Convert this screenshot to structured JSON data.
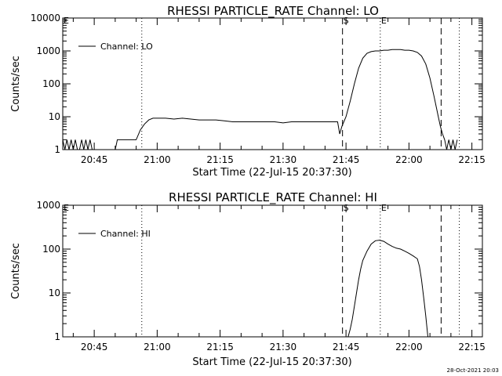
{
  "footer": {
    "timestamp": "28-Oct-2021 20:03"
  },
  "chart_data": [
    {
      "type": "line",
      "title": "RHESSI PARTICLE_RATE Channel: LO",
      "xlabel": "Start Time (22-Jul-15 20:37:30)",
      "ylabel": "Counts/sec",
      "yscale": "log",
      "xlim": [
        "20:37:30",
        "22:17:30"
      ],
      "ylim": [
        1,
        10000
      ],
      "xticks": [
        "20:45",
        "21:00",
        "21:15",
        "21:30",
        "21:45",
        "22:00",
        "22:15"
      ],
      "yticks": [
        "1",
        "10",
        "100",
        "1000",
        "10000"
      ],
      "legend": "top-left",
      "markers": [
        {
          "label": "E",
          "time": "20:37:30",
          "style": "dotted"
        },
        {
          "label": "",
          "time": "20:56:20",
          "style": "dotted"
        },
        {
          "label": "S",
          "time": "21:44:10",
          "style": "dashed"
        },
        {
          "label": "E",
          "time": "21:53:10",
          "style": "dotted"
        },
        {
          "label": "",
          "time": "22:07:40",
          "style": "dashed"
        },
        {
          "label": "",
          "time": "22:12:00",
          "style": "dotted"
        }
      ],
      "series": [
        {
          "name": "Channel: LO",
          "x": [
            "20:37:30",
            "20:38:00",
            "20:38:30",
            "20:39:00",
            "20:39:30",
            "20:40:00",
            "20:40:30",
            "20:41:00",
            "20:41:30",
            "20:42:00",
            "20:42:30",
            "20:43:00",
            "20:43:30",
            "20:44:00",
            "20:44:30",
            "20:50:00",
            "20:50:30",
            "20:51:00",
            "20:51:30",
            "20:52:00",
            "20:52:30",
            "20:53:00",
            "20:54:00",
            "20:55:00",
            "20:56:00",
            "20:57:00",
            "20:58:00",
            "20:59:00",
            "21:00:00",
            "21:02:00",
            "21:04:00",
            "21:06:00",
            "21:08:00",
            "21:10:00",
            "21:12:00",
            "21:14:00",
            "21:16:00",
            "21:18:00",
            "21:20:00",
            "21:22:00",
            "21:24:00",
            "21:26:00",
            "21:28:00",
            "21:30:00",
            "21:32:00",
            "21:34:00",
            "21:36:00",
            "21:38:00",
            "21:40:00",
            "21:42:00",
            "21:43:00",
            "21:43:30",
            "21:44:00",
            "21:45:00",
            "21:46:00",
            "21:47:00",
            "21:48:00",
            "21:49:00",
            "21:50:00",
            "21:51:00",
            "21:52:00",
            "21:53:00",
            "21:54:00",
            "21:55:00",
            "21:56:00",
            "21:57:00",
            "21:58:00",
            "21:59:00",
            "22:00:00",
            "22:01:00",
            "22:02:00",
            "22:03:00",
            "22:04:00",
            "22:05:00",
            "22:06:00",
            "22:07:00",
            "22:07:30",
            "22:08:00",
            "22:08:30",
            "22:09:00",
            "22:09:30",
            "22:10:00",
            "22:10:30",
            "22:11:00",
            "22:11:30"
          ],
          "y": [
            2,
            1,
            2,
            1,
            2,
            1,
            2,
            1,
            1,
            2,
            1,
            2,
            1,
            2,
            1,
            1,
            2,
            2,
            2,
            2,
            2,
            2,
            2,
            2,
            4,
            6,
            8,
            9,
            9,
            9,
            8.5,
            9,
            8.5,
            8,
            8,
            8,
            7.5,
            7,
            7,
            7,
            7,
            7,
            7,
            6.5,
            7,
            7,
            7,
            7,
            7,
            7,
            7,
            3,
            5,
            10,
            30,
            100,
            300,
            600,
            850,
            950,
            1000,
            1000,
            1050,
            1050,
            1100,
            1100,
            1100,
            1050,
            1050,
            1000,
            900,
            700,
            400,
            150,
            40,
            10,
            5,
            3,
            2,
            1,
            2,
            1,
            2,
            1,
            2
          ]
        }
      ]
    },
    {
      "type": "line",
      "title": "RHESSI PARTICLE_RATE Channel: HI",
      "xlabel": "Start Time (22-Jul-15 20:37:30)",
      "ylabel": "Counts/sec",
      "yscale": "log",
      "xlim": [
        "20:37:30",
        "22:17:30"
      ],
      "ylim": [
        1,
        1000
      ],
      "xticks": [
        "20:45",
        "21:00",
        "21:15",
        "21:30",
        "21:45",
        "22:00",
        "22:15"
      ],
      "yticks": [
        "1",
        "10",
        "100",
        "1000"
      ],
      "legend": "top-left",
      "markers": [
        {
          "label": "E",
          "time": "20:37:30",
          "style": "dotted"
        },
        {
          "label": "",
          "time": "20:56:20",
          "style": "dotted"
        },
        {
          "label": "S",
          "time": "21:44:10",
          "style": "dashed"
        },
        {
          "label": "E",
          "time": "21:53:10",
          "style": "dotted"
        },
        {
          "label": "",
          "time": "22:07:40",
          "style": "dashed"
        },
        {
          "label": "",
          "time": "22:12:00",
          "style": "dotted"
        }
      ],
      "series": [
        {
          "name": "Channel: HI",
          "x": [
            "21:45:30",
            "21:46:00",
            "21:46:30",
            "21:47:00",
            "21:47:30",
            "21:48:00",
            "21:48:30",
            "21:49:00",
            "21:50:00",
            "21:51:00",
            "21:52:00",
            "21:53:00",
            "21:54:00",
            "21:55:00",
            "21:56:00",
            "21:57:00",
            "21:58:00",
            "21:59:00",
            "22:00:00",
            "22:01:00",
            "22:02:00",
            "22:02:30",
            "22:03:00",
            "22:03:30",
            "22:04:00",
            "22:04:30"
          ],
          "y": [
            1,
            1.5,
            2.5,
            5,
            10,
            20,
            35,
            55,
            90,
            130,
            155,
            160,
            150,
            130,
            115,
            105,
            100,
            90,
            80,
            70,
            60,
            40,
            20,
            8,
            3,
            1
          ]
        }
      ]
    }
  ]
}
